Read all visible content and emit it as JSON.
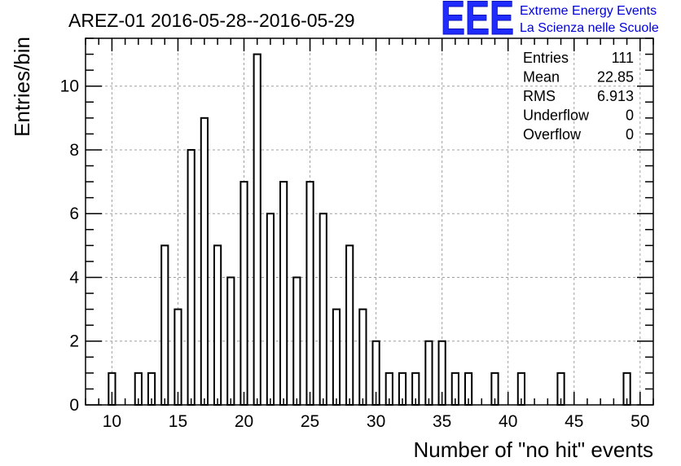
{
  "header": {
    "title": "AREZ-01 2016-05-28--2016-05-29"
  },
  "logo": {
    "mark": "EEE",
    "line1": "Extreme Energy Events",
    "line2": "La Scienza nelle Scuole",
    "color": "#1f2bff"
  },
  "stats": {
    "rows": [
      {
        "label": "Entries",
        "value": "111"
      },
      {
        "label": "Mean",
        "value": "22.85"
      },
      {
        "label": "RMS",
        "value": "6.913"
      },
      {
        "label": "Underflow",
        "value": "0"
      },
      {
        "label": "Overflow",
        "value": "0"
      }
    ]
  },
  "chart_data": {
    "type": "bar",
    "xlabel": "Number of \"no hit\" events",
    "ylabel": "Entries/bin",
    "xlim": [
      8,
      51
    ],
    "ylim": [
      0,
      11.5
    ],
    "grid": true,
    "xticks": [
      10,
      15,
      20,
      25,
      30,
      35,
      40,
      45,
      50
    ],
    "yticks": [
      0,
      2,
      4,
      6,
      8,
      10
    ],
    "bin_width": 1,
    "x": [
      10,
      12,
      13,
      14,
      15,
      16,
      17,
      18,
      19,
      20,
      21,
      22,
      23,
      24,
      25,
      26,
      27,
      28,
      29,
      30,
      31,
      32,
      33,
      34,
      35,
      36,
      37,
      39,
      41,
      44,
      49
    ],
    "values": [
      1,
      1,
      1,
      5,
      3,
      8,
      9,
      5,
      4,
      7,
      11,
      6,
      7,
      4,
      7,
      6,
      3,
      5,
      3,
      2,
      1,
      1,
      1,
      2,
      2,
      1,
      1,
      1,
      1,
      1,
      1
    ],
    "line_color": "#000000"
  }
}
